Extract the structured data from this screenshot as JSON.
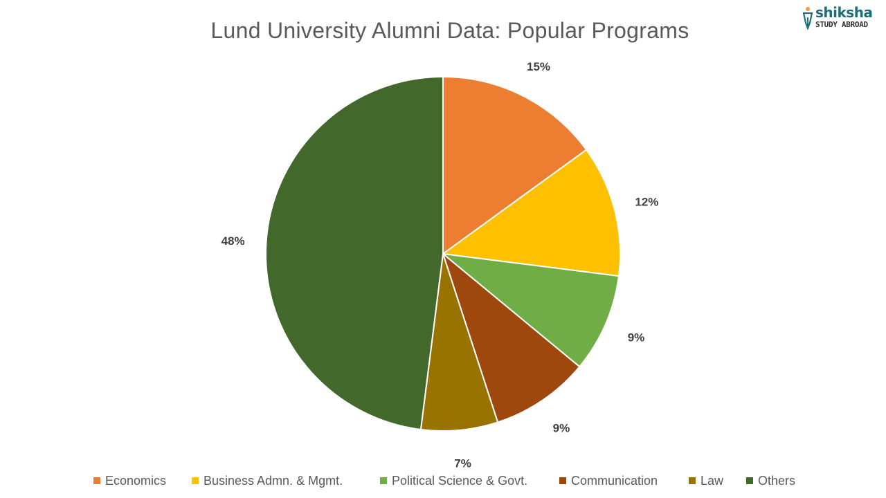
{
  "chart_data": {
    "type": "pie",
    "title": "Lund University Alumni Data: Popular Programs",
    "categories": [
      "Economics",
      "Business Admn. & Mgmt.",
      "Political Science & Govt.",
      "Communication",
      "Law",
      "Others"
    ],
    "values": [
      15,
      12,
      9,
      9,
      7,
      48
    ],
    "data_labels": [
      "15%",
      "12%",
      "9%",
      "9%",
      "7%",
      "48%"
    ],
    "colors": [
      "#ED7D31",
      "#FFC000",
      "#70AD47",
      "#9E480E",
      "#997300",
      "#43682B"
    ],
    "legend_position": "bottom"
  },
  "logo": {
    "brand": "shiksha",
    "subtitle": "STUDY ABROAD"
  }
}
